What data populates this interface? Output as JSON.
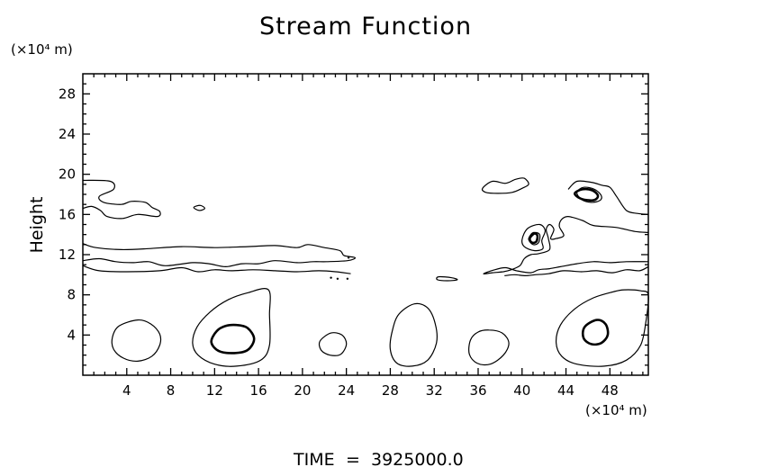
{
  "chart_data": {
    "type": "contour",
    "title": "Stream Function",
    "ylabel": "Height",
    "xunit": "(×10⁴ m)",
    "yunit": "(×10⁴ m)",
    "xlim": [
      0,
      51.5
    ],
    "ylim": [
      0,
      30
    ],
    "xticks": [
      4,
      8,
      12,
      16,
      20,
      24,
      28,
      32,
      36,
      40,
      44,
      48
    ],
    "yticks": [
      4,
      8,
      12,
      16,
      20,
      24,
      28
    ],
    "minor_ticks": true,
    "grid": false,
    "line_color": "#000000",
    "contours": [
      {
        "level": "thin",
        "points": [
          [
            5,
            5.5
          ],
          [
            6.2,
            5.1
          ],
          [
            7,
            4.1
          ],
          [
            7,
            3
          ],
          [
            6.3,
            1.9
          ],
          [
            5,
            1.4
          ],
          [
            3.7,
            1.7
          ],
          [
            2.8,
            2.6
          ],
          [
            2.7,
            3.8
          ],
          [
            3.3,
            4.9
          ]
        ]
      },
      {
        "level": "thin",
        "points": [
          [
            16.9,
            8.5
          ],
          [
            17,
            6
          ],
          [
            17,
            3
          ],
          [
            16.2,
            1.5
          ],
          [
            14,
            0.9
          ],
          [
            12,
            1.1
          ],
          [
            10.5,
            2
          ],
          [
            10,
            3.2
          ],
          [
            10.4,
            4.8
          ],
          [
            11.6,
            6.3
          ],
          [
            13.2,
            7.5
          ],
          [
            15,
            8.2
          ]
        ]
      },
      {
        "level": "bold",
        "points": [
          [
            14,
            5
          ],
          [
            15,
            4.7
          ],
          [
            15.6,
            3.6
          ],
          [
            15,
            2.5
          ],
          [
            13.8,
            2.2
          ],
          [
            12.4,
            2.4
          ],
          [
            11.7,
            3.3
          ],
          [
            12.2,
            4.4
          ],
          [
            13,
            4.9
          ]
        ]
      },
      {
        "level": "thin",
        "points": [
          [
            22.6,
            4.2
          ],
          [
            23.6,
            4
          ],
          [
            24,
            3.1
          ],
          [
            23.5,
            2.1
          ],
          [
            22.5,
            2
          ],
          [
            21.7,
            2.5
          ],
          [
            21.6,
            3.4
          ]
        ]
      },
      {
        "level": "thin",
        "points": [
          [
            30.2,
            7.1
          ],
          [
            31.4,
            6.7
          ],
          [
            32.1,
            5.1
          ],
          [
            32.2,
            3.2
          ],
          [
            31.4,
            1.5
          ],
          [
            30,
            0.9
          ],
          [
            28.6,
            1.2
          ],
          [
            28,
            2.6
          ],
          [
            28.2,
            4.5
          ],
          [
            28.8,
            6.1
          ]
        ]
      },
      {
        "level": "thin",
        "points": [
          [
            37,
            4.5
          ],
          [
            38.2,
            4.2
          ],
          [
            38.8,
            3.2
          ],
          [
            38.3,
            2
          ],
          [
            37.1,
            1.1
          ],
          [
            35.9,
            1.2
          ],
          [
            35.2,
            2.1
          ],
          [
            35.3,
            3.5
          ],
          [
            36,
            4.3
          ]
        ]
      },
      {
        "level": "thin",
        "points": [
          [
            49.3,
            8.5
          ],
          [
            50.8,
            8.4
          ],
          [
            51.5,
            8
          ],
          [
            51.3,
            5.5
          ],
          [
            50.8,
            3
          ],
          [
            49.5,
            1.5
          ],
          [
            47.5,
            0.9
          ],
          [
            45,
            1.1
          ],
          [
            43.6,
            1.9
          ],
          [
            43.1,
            3.3
          ],
          [
            43.5,
            5
          ],
          [
            44.8,
            6.6
          ],
          [
            46.5,
            7.7
          ],
          [
            48.3,
            8.3
          ]
        ]
      },
      {
        "level": "bold",
        "points": [
          [
            46.8,
            5.5
          ],
          [
            47.6,
            5.1
          ],
          [
            47.8,
            4
          ],
          [
            47.2,
            3.2
          ],
          [
            46.3,
            3.1
          ],
          [
            45.6,
            3.7
          ],
          [
            45.7,
            4.8
          ]
        ]
      },
      {
        "level": "thin",
        "points": [
          [
            45.6,
            18.7
          ],
          [
            46.6,
            18.5
          ],
          [
            47.2,
            17.9
          ],
          [
            47.1,
            17.4
          ],
          [
            46.3,
            17.2
          ],
          [
            45.4,
            17.5
          ],
          [
            45,
            18.2
          ]
        ]
      },
      {
        "level": "thin",
        "points": [
          [
            36.4,
            18.6
          ],
          [
            37.3,
            19.3
          ],
          [
            38.5,
            19.1
          ],
          [
            39.4,
            19.5
          ],
          [
            40.2,
            19.6
          ],
          [
            40.6,
            19.0
          ],
          [
            40.0,
            18.6
          ],
          [
            39.1,
            18.2
          ],
          [
            37.8,
            18.1
          ],
          [
            36.7,
            18.2
          ]
        ]
      },
      {
        "level": "thin",
        "points": [
          [
            41.1,
            14.2
          ],
          [
            41.6,
            14.0
          ],
          [
            41.5,
            13.2
          ],
          [
            41.0,
            13.0
          ],
          [
            40.6,
            13.5
          ],
          [
            40.8,
            14.0
          ]
        ]
      },
      {
        "level": "thin",
        "points": [
          [
            40.5,
            14.6
          ],
          [
            41.6,
            15.0
          ],
          [
            42.1,
            14.4
          ],
          [
            41.8,
            13.4
          ],
          [
            41.9,
            12.6
          ],
          [
            41.1,
            12.4
          ],
          [
            40.2,
            12.8
          ],
          [
            40.0,
            13.5
          ]
        ]
      },
      {
        "level": "thin",
        "points": [
          [
            10.1,
            16.7
          ],
          [
            10.7,
            16.9
          ],
          [
            11.1,
            16.6
          ],
          [
            10.6,
            16.4
          ]
        ]
      },
      {
        "level": "thin",
        "points": [
          [
            32.4,
            9.8
          ],
          [
            33.6,
            9.7
          ],
          [
            34.1,
            9.5
          ],
          [
            33.2,
            9.4
          ],
          [
            32.3,
            9.5
          ]
        ]
      },
      {
        "level": "thin",
        "open": true,
        "points": [
          [
            0,
            19.4
          ],
          [
            2.5,
            19.3
          ],
          [
            2.8,
            18.5
          ],
          [
            1.5,
            17.8
          ],
          [
            1.9,
            17.2
          ],
          [
            3.5,
            17
          ],
          [
            4.4,
            17.3
          ],
          [
            5.7,
            17.2
          ],
          [
            6.3,
            16.7
          ],
          [
            7,
            16.3
          ],
          [
            6.8,
            15.8
          ],
          [
            5,
            16
          ],
          [
            3.6,
            15.6
          ],
          [
            2.2,
            15.8
          ],
          [
            1.6,
            16.4
          ],
          [
            0.8,
            16.8
          ],
          [
            0,
            16.6
          ]
        ]
      },
      {
        "level": "thin",
        "open": true,
        "points": [
          [
            0,
            13.1
          ],
          [
            1.2,
            12.7
          ],
          [
            3.5,
            12.5
          ],
          [
            6,
            12.6
          ],
          [
            9,
            12.8
          ],
          [
            12,
            12.7
          ],
          [
            15,
            12.8
          ],
          [
            17.5,
            12.9
          ],
          [
            19.5,
            12.7
          ],
          [
            20.5,
            13
          ],
          [
            22,
            12.7
          ],
          [
            23.4,
            12.4
          ],
          [
            23.8,
            11.9
          ],
          [
            24.8,
            11.7
          ],
          [
            24.1,
            11.4
          ],
          [
            22.2,
            11.3
          ],
          [
            21,
            11.3
          ],
          [
            19.5,
            11.2
          ],
          [
            17.5,
            11.4
          ],
          [
            16,
            11.1
          ],
          [
            14.5,
            11.1
          ],
          [
            13,
            10.8
          ],
          [
            11.5,
            11.1
          ],
          [
            10,
            11.2
          ],
          [
            7.5,
            10.9
          ],
          [
            6,
            11.3
          ],
          [
            4.5,
            11.2
          ],
          [
            3,
            11.3
          ],
          [
            1.5,
            11.6
          ],
          [
            0,
            11.4
          ]
        ]
      },
      {
        "level": "thin",
        "open": true,
        "points": [
          [
            0,
            10.9
          ],
          [
            1.5,
            10.4
          ],
          [
            4,
            10.3
          ],
          [
            7,
            10.4
          ],
          [
            9,
            10.7
          ],
          [
            10.5,
            10.3
          ],
          [
            12,
            10.5
          ],
          [
            13.5,
            10.4
          ],
          [
            15.5,
            10.5
          ],
          [
            17.5,
            10.4
          ],
          [
            19.5,
            10.3
          ],
          [
            21.5,
            10.4
          ],
          [
            23,
            10.3
          ],
          [
            24.4,
            10.1
          ]
        ]
      },
      {
        "level": "thin",
        "open": true,
        "points": [
          [
            44.2,
            18.5
          ],
          [
            45,
            19.3
          ],
          [
            46.3,
            19.2
          ],
          [
            47.3,
            18.9
          ],
          [
            48,
            18.7
          ],
          [
            48.6,
            17.8
          ],
          [
            49.5,
            16.4
          ],
          [
            50.5,
            16.1
          ],
          [
            51.5,
            16
          ]
        ]
      },
      {
        "level": "thin",
        "open": true,
        "points": [
          [
            51.5,
            14.2
          ],
          [
            50.3,
            14.3
          ],
          [
            48.6,
            14.7
          ],
          [
            46.5,
            14.9
          ],
          [
            45.5,
            15.4
          ],
          [
            44.2,
            15.8
          ],
          [
            43.6,
            15.5
          ],
          [
            43.4,
            14.8
          ],
          [
            43.8,
            13.9
          ],
          [
            43.1,
            13.6
          ],
          [
            42.6,
            13.6
          ],
          [
            42.9,
            14.5
          ],
          [
            42.5,
            15
          ],
          [
            42.2,
            14.5
          ],
          [
            42.4,
            13.6
          ],
          [
            42.5,
            12.5
          ],
          [
            41.5,
            12.1
          ],
          [
            40.8,
            12
          ],
          [
            40.2,
            11.6
          ],
          [
            39.8,
            10.9
          ],
          [
            39.0,
            10.5
          ],
          [
            38.3,
            10.3
          ],
          [
            37.3,
            10.2
          ],
          [
            36.5,
            10.1
          ],
          [
            37.5,
            10.5
          ],
          [
            38.5,
            10.7
          ],
          [
            39.5,
            10.4
          ],
          [
            40.8,
            10.2
          ],
          [
            41.5,
            10.5
          ],
          [
            42.5,
            10.6
          ],
          [
            43.5,
            10.8
          ],
          [
            45,
            11.1
          ],
          [
            46.5,
            11.3
          ],
          [
            48,
            11.2
          ],
          [
            49.5,
            11.3
          ],
          [
            51.5,
            11.3
          ]
        ]
      },
      {
        "level": "thin",
        "open": true,
        "points": [
          [
            51.5,
            10.8
          ],
          [
            50.7,
            10.4
          ],
          [
            49.5,
            10.5
          ],
          [
            48.2,
            10.2
          ],
          [
            46.8,
            10.4
          ],
          [
            45.4,
            10.3
          ],
          [
            43.8,
            10.4
          ],
          [
            42.4,
            10.1
          ],
          [
            41.2,
            10.0
          ],
          [
            40.3,
            9.9
          ],
          [
            39.3,
            10.0
          ],
          [
            38.4,
            9.9
          ]
        ]
      },
      {
        "level": "bold",
        "points": [
          [
            45.5,
            18.5
          ],
          [
            46.4,
            18.4
          ],
          [
            46.9,
            17.9
          ],
          [
            46.7,
            17.5
          ],
          [
            46.2,
            17.4
          ],
          [
            45.3,
            17.6
          ],
          [
            44.8,
            18.1
          ]
        ]
      },
      {
        "level": "bold",
        "points": [
          [
            41.1,
            14.1
          ],
          [
            41.4,
            13.9
          ],
          [
            41.3,
            13.3
          ],
          [
            40.9,
            13.2
          ],
          [
            40.7,
            13.6
          ]
        ]
      }
    ],
    "specks": [
      [
        22.6,
        9.7
      ],
      [
        23.2,
        9.6
      ],
      [
        24.1,
        9.6
      ],
      [
        24.2,
        11.7
      ]
    ]
  },
  "footer": {
    "time_label": "TIME",
    "equals": "=",
    "time_value": "3925000.0"
  }
}
